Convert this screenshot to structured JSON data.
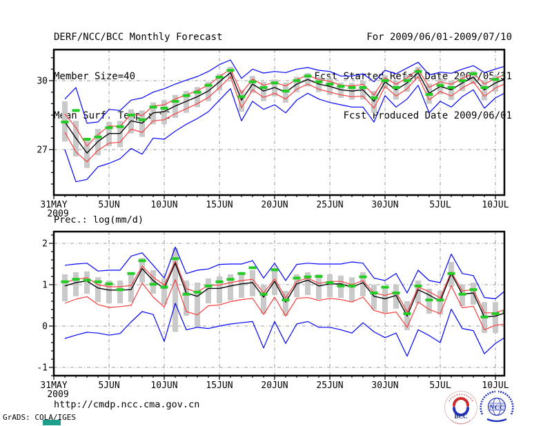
{
  "header": {
    "left": [
      "DERF/NCC/BCC Monthly Forecast",
      "Member Size=40",
      "Mean Surf. Temp.: °C"
    ],
    "right": [
      "For 2009/06/01-2009/07/10",
      "Fcst Started Refer Date 2009/05/31",
      "Fcst Produced Date 2009/06/01"
    ]
  },
  "footer": {
    "url": "http://cmdp.ncc.cma.gov.cn",
    "credit": "GrADS: COLA/IGES",
    "logos": [
      {
        "name": "bcc-logo",
        "label": "BCC"
      },
      {
        "name": "ncc-logo",
        "label": "NCC"
      }
    ]
  },
  "colors": {
    "mean_line": "#000000",
    "quartile_line": "#fa3c3c",
    "extreme_line": "#0000ff",
    "obs_dash": "#22cc22",
    "spread_bar": "#c9c9c9",
    "grid": "#999999",
    "frame": "#000000",
    "logo_red": "#cc2a2a",
    "logo_blue": "#2233bb",
    "logo_navy": "#1a2f7a",
    "teal_mark": "#1f9e8e"
  },
  "chart_data": [
    {
      "type": "line",
      "title": "Mean Surf. Temp.: °C",
      "x_year_label": "2009",
      "x_tick_labels": [
        "31MAY",
        "5JUN",
        "10JUN",
        "15JUN",
        "20JUN",
        "25JUN",
        "30JUN",
        "5JUL",
        "10JUL"
      ],
      "x_tick_days": [
        0,
        5,
        10,
        15,
        20,
        25,
        30,
        35,
        40
      ],
      "start_day": 1,
      "n_points": 41,
      "ylim": [
        25.02,
        31.35
      ],
      "y_ticks": [
        27,
        30
      ],
      "y_minor_step": 0.5,
      "grid": true,
      "legend_position": "none",
      "series": {
        "blue_upper": [
          29.2,
          29.7,
          28.15,
          28.2,
          28.75,
          28.7,
          29.15,
          29.25,
          29.5,
          29.65,
          29.85,
          30.02,
          30.18,
          30.4,
          30.7,
          30.9,
          30.1,
          30.5,
          30.33,
          30.4,
          30.35,
          30.5,
          30.57,
          30.45,
          30.4,
          30.2,
          30.2,
          30.3,
          29.95,
          30.45,
          30.3,
          30.55,
          30.8,
          30.25,
          30.37,
          30.32,
          30.5,
          30.65,
          30.35,
          30.5,
          30.65
        ],
        "red_upper": [
          28.55,
          27.95,
          27.15,
          27.65,
          28.03,
          28.0,
          28.55,
          28.48,
          28.9,
          28.95,
          29.2,
          29.38,
          29.57,
          29.8,
          30.17,
          30.5,
          29.45,
          30.07,
          29.8,
          29.92,
          29.77,
          30.05,
          30.23,
          30.05,
          29.97,
          29.8,
          29.77,
          29.84,
          29.37,
          30.13,
          29.84,
          30.12,
          30.5,
          29.71,
          29.95,
          29.84,
          30.1,
          30.33,
          29.85,
          30.1,
          30.28
        ],
        "mean": [
          28.2,
          27.5,
          26.85,
          27.35,
          27.7,
          27.7,
          28.25,
          28.15,
          28.6,
          28.65,
          28.9,
          29.1,
          29.3,
          29.55,
          29.95,
          30.35,
          29.15,
          29.85,
          29.55,
          29.7,
          29.5,
          29.85,
          30.05,
          29.85,
          29.75,
          29.6,
          29.55,
          29.6,
          29.1,
          29.95,
          29.6,
          29.9,
          30.35,
          29.45,
          29.75,
          29.6,
          29.9,
          30.15,
          29.6,
          29.9,
          30.1
        ],
        "red_lower": [
          27.75,
          26.9,
          26.47,
          26.97,
          27.28,
          27.32,
          27.89,
          27.75,
          28.25,
          28.3,
          28.56,
          28.78,
          29.0,
          29.27,
          29.7,
          30.17,
          28.82,
          29.6,
          29.27,
          29.45,
          29.2,
          29.63,
          29.85,
          29.63,
          29.5,
          29.38,
          29.3,
          29.33,
          28.8,
          29.75,
          29.33,
          29.65,
          30.17,
          29.16,
          29.53,
          29.33,
          29.68,
          29.95,
          29.32,
          29.68,
          29.9
        ],
        "blue_lower": [
          27.0,
          25.6,
          25.7,
          26.25,
          26.4,
          26.6,
          27.05,
          26.8,
          27.5,
          27.45,
          27.8,
          28.1,
          28.35,
          28.65,
          29.15,
          29.65,
          28.25,
          29.1,
          28.75,
          28.95,
          28.6,
          29.15,
          29.45,
          29.2,
          29.05,
          28.95,
          28.85,
          28.85,
          28.2,
          29.35,
          28.85,
          29.2,
          29.8,
          28.6,
          29.1,
          28.85,
          29.3,
          29.6,
          28.8,
          29.25,
          29.5
        ],
        "green_obs": [
          28.2,
          28.7,
          27.45,
          27.55,
          27.95,
          28.0,
          28.5,
          28.3,
          28.85,
          28.8,
          29.1,
          29.35,
          29.5,
          29.8,
          30.15,
          30.45,
          29.3,
          29.95,
          29.7,
          29.9,
          29.55,
          30.0,
          30.2,
          29.95,
          29.85,
          29.75,
          29.7,
          29.7,
          29.25,
          30.0,
          29.7,
          30.0,
          30.4,
          29.4,
          29.8,
          29.7,
          30.0,
          30.3,
          29.7,
          30.05,
          30.25
        ]
      },
      "spread_bars": {
        "top": [
          29.1,
          28.25,
          27.45,
          27.9,
          28.2,
          28.25,
          28.75,
          28.7,
          29.05,
          29.15,
          29.38,
          29.55,
          29.72,
          29.95,
          30.3,
          30.6,
          29.6,
          30.2,
          29.95,
          30.05,
          29.92,
          30.17,
          30.33,
          30.17,
          30.1,
          29.92,
          29.9,
          29.98,
          29.55,
          30.23,
          29.98,
          30.25,
          30.6,
          29.87,
          30.07,
          30.0,
          30.22,
          30.43,
          30.02,
          30.25,
          30.4
        ],
        "bottom": [
          27.35,
          26.7,
          26.2,
          26.75,
          27.15,
          27.1,
          27.7,
          27.55,
          28.1,
          28.1,
          28.38,
          28.6,
          28.84,
          29.11,
          29.57,
          30.07,
          28.65,
          29.47,
          29.11,
          29.32,
          29.04,
          29.5,
          29.75,
          29.5,
          29.37,
          29.25,
          29.17,
          29.18,
          28.6,
          29.65,
          29.18,
          29.52,
          30.07,
          28.99,
          29.4,
          29.16,
          29.55,
          29.85,
          29.14,
          29.52,
          29.77
        ]
      }
    },
    {
      "type": "line",
      "title": "Prec.: log(mm/d)",
      "x_year_label": "2009",
      "x_tick_labels": [
        "31MAY",
        "5JUN",
        "10JUN",
        "15JUN",
        "20JUN",
        "25JUN",
        "30JUN",
        "5JUL",
        "10JUL"
      ],
      "x_tick_days": [
        0,
        5,
        10,
        15,
        20,
        25,
        30,
        35,
        40
      ],
      "start_day": 1,
      "n_points": 41,
      "ylim": [
        -1.2,
        2.28
      ],
      "y_ticks": [
        -1,
        0,
        1,
        2
      ],
      "y_minor_step": 0.2,
      "grid": true,
      "legend_position": "none",
      "series": {
        "blue_upper": [
          1.47,
          1.5,
          1.52,
          1.33,
          1.35,
          1.35,
          1.69,
          1.77,
          1.47,
          1.16,
          1.91,
          1.27,
          1.35,
          1.38,
          1.49,
          1.5,
          1.5,
          1.58,
          1.16,
          1.52,
          1.1,
          1.49,
          1.52,
          1.5,
          1.5,
          1.5,
          1.55,
          1.52,
          1.16,
          1.1,
          1.27,
          0.8,
          1.35,
          1.1,
          1.05,
          1.74,
          1.27,
          1.22,
          0.69,
          0.66,
          0.88
        ],
        "red_upper": [
          1.05,
          1.13,
          1.17,
          1.0,
          0.95,
          0.95,
          0.98,
          1.45,
          1.18,
          0.99,
          1.57,
          0.9,
          0.82,
          0.99,
          0.99,
          1.05,
          1.1,
          1.13,
          0.8,
          1.14,
          0.68,
          1.08,
          1.16,
          1.03,
          1.08,
          1.08,
          1.0,
          1.1,
          0.8,
          0.74,
          0.82,
          0.34,
          0.94,
          0.83,
          0.68,
          1.31,
          0.85,
          0.88,
          0.32,
          0.32,
          0.41
        ],
        "mean": [
          0.97,
          1.05,
          1.09,
          0.92,
          0.87,
          0.87,
          0.88,
          1.39,
          1.1,
          0.91,
          1.52,
          0.8,
          0.72,
          0.91,
          0.91,
          0.97,
          1.02,
          1.05,
          0.7,
          1.08,
          0.58,
          1.02,
          1.11,
          0.97,
          1.02,
          1.02,
          0.94,
          1.05,
          0.72,
          0.66,
          0.74,
          0.24,
          0.88,
          0.75,
          0.6,
          1.27,
          0.77,
          0.8,
          0.22,
          0.24,
          0.33
        ],
        "red_lower": [
          0.55,
          0.65,
          0.71,
          0.52,
          0.45,
          0.47,
          0.5,
          1.04,
          0.7,
          0.46,
          1.12,
          0.35,
          0.27,
          0.49,
          0.51,
          0.59,
          0.64,
          0.67,
          0.28,
          0.7,
          0.24,
          0.67,
          0.69,
          0.62,
          0.67,
          0.64,
          0.58,
          0.7,
          0.38,
          0.3,
          0.34,
          -0.03,
          0.58,
          0.4,
          0.3,
          0.97,
          0.44,
          0.48,
          -0.09,
          0.02,
          0.05
        ],
        "blue_lower": [
          -0.3,
          -0.22,
          -0.15,
          -0.17,
          -0.22,
          -0.18,
          0.1,
          0.35,
          0.28,
          -0.37,
          0.55,
          -0.09,
          -0.03,
          -0.06,
          0.0,
          0.05,
          0.08,
          0.11,
          -0.53,
          0.11,
          -0.42,
          0.05,
          0.11,
          -0.03,
          -0.03,
          -0.09,
          -0.17,
          0.08,
          -0.14,
          -0.28,
          -0.17,
          -0.73,
          -0.09,
          -0.23,
          -0.4,
          0.41,
          -0.06,
          -0.11,
          -0.67,
          -0.42,
          -0.25
        ],
        "green_obs": [
          1.07,
          1.13,
          1.11,
          1.07,
          1.02,
          0.88,
          1.27,
          1.58,
          1.01,
          0.94,
          1.63,
          0.77,
          0.82,
          0.97,
          1.07,
          1.13,
          1.27,
          1.41,
          0.77,
          1.36,
          0.63,
          1.16,
          1.19,
          1.2,
          1.05,
          0.97,
          0.97,
          1.19,
          0.8,
          0.94,
          0.8,
          0.3,
          0.97,
          0.63,
          0.63,
          1.27,
          0.77,
          0.88,
          0.22,
          0.3,
          0.35
        ]
      },
      "spread_bars": {
        "top": [
          1.25,
          1.3,
          1.32,
          1.18,
          1.1,
          1.1,
          1.3,
          1.65,
          1.35,
          1.15,
          1.88,
          1.1,
          1.05,
          1.15,
          1.2,
          1.25,
          1.3,
          1.35,
          1.0,
          1.4,
          0.85,
          1.25,
          1.3,
          1.25,
          1.25,
          1.22,
          1.18,
          1.3,
          1.0,
          0.95,
          1.0,
          0.6,
          1.1,
          0.9,
          0.85,
          1.55,
          1.0,
          1.05,
          0.58,
          0.58,
          0.62
        ],
        "bottom": [
          0.6,
          0.72,
          0.78,
          0.58,
          0.55,
          0.55,
          0.58,
          1.05,
          0.78,
          0.52,
          -0.14,
          0.25,
          -0.03,
          0.55,
          0.55,
          0.62,
          0.68,
          0.72,
          0.3,
          0.75,
          0.25,
          0.7,
          0.75,
          0.65,
          0.7,
          0.68,
          0.6,
          0.72,
          0.4,
          0.32,
          0.42,
          -0.1,
          0.55,
          0.3,
          0.28,
          0.95,
          0.48,
          0.52,
          -0.17,
          -0.17,
          0.02
        ]
      }
    }
  ]
}
